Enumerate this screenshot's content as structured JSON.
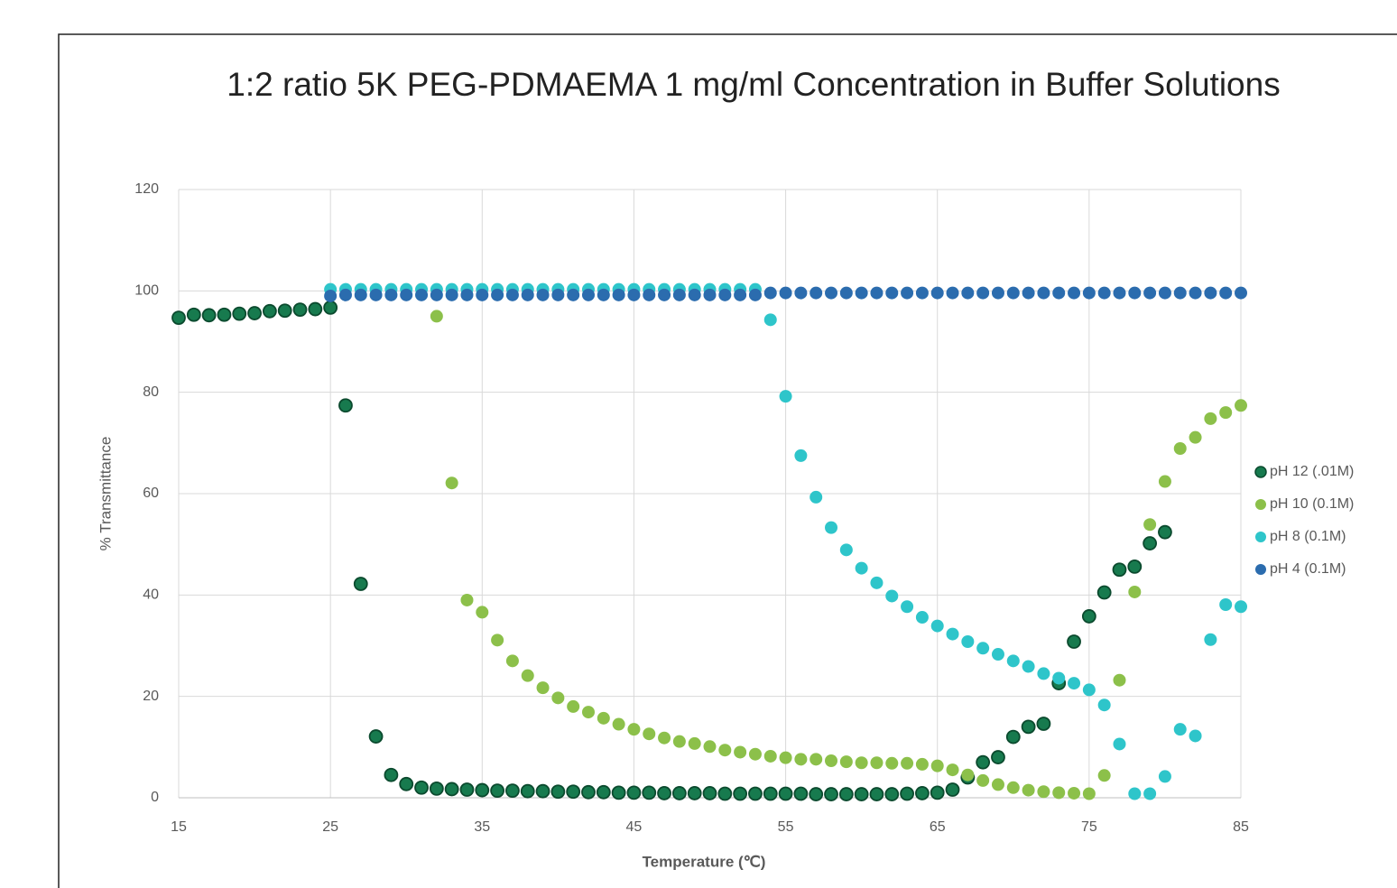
{
  "chart_data": {
    "type": "scatter",
    "title": "1:2 ratio 5K PEG-PDMAEMA 1 mg/ml Concentration in Buffer Solutions",
    "xlabel": "Temperature (℃)",
    "ylabel": "% Transmittance",
    "xlim": [
      15,
      85
    ],
    "xticks": [
      15,
      25,
      35,
      45,
      55,
      65,
      75,
      85
    ],
    "ylim": [
      0,
      120
    ],
    "yticks": [
      0,
      20,
      40,
      60,
      80,
      100,
      120
    ],
    "grid": true,
    "legend": "right",
    "series": [
      {
        "name": "pH 12 (.01M)",
        "color": "#177a4e",
        "edgecolor": "#0b4a2e",
        "x": [
          15,
          16,
          17,
          18,
          19,
          20,
          21,
          22,
          23,
          24,
          25,
          26,
          27,
          28,
          29,
          30,
          31,
          32,
          33,
          34,
          35,
          36,
          37,
          38,
          39,
          40,
          41,
          42,
          43,
          44,
          45,
          46,
          47,
          48,
          49,
          50,
          51,
          52,
          53,
          54,
          55,
          56,
          57,
          58,
          59,
          60,
          61,
          62,
          63,
          64,
          65,
          66,
          67,
          68,
          69,
          70,
          71,
          72,
          73,
          74,
          75,
          76,
          77,
          78,
          79,
          80
        ],
        "values": [
          94.7,
          95.3,
          95.2,
          95.3,
          95.5,
          95.6,
          96.0,
          96.1,
          96.3,
          96.4,
          96.7,
          77.4,
          42.2,
          12.1,
          4.5,
          2.7,
          2.0,
          1.8,
          1.7,
          1.6,
          1.5,
          1.4,
          1.4,
          1.3,
          1.3,
          1.2,
          1.2,
          1.1,
          1.1,
          1.0,
          1.0,
          1.0,
          0.9,
          0.9,
          0.9,
          0.9,
          0.8,
          0.8,
          0.8,
          0.8,
          0.8,
          0.8,
          0.7,
          0.7,
          0.7,
          0.7,
          0.7,
          0.7,
          0.8,
          0.9,
          1.0,
          1.6,
          4.0,
          7.0,
          8.0,
          12.0,
          14.0,
          14.6,
          22.6,
          30.8,
          35.8,
          40.5,
          45.0,
          45.6,
          50.2,
          52.4
        ]
      },
      {
        "name": "pH 10 (0.1M)",
        "color": "#8cc04a",
        "x": [
          32,
          33,
          34,
          35,
          36,
          37,
          38,
          39,
          40,
          41,
          42,
          43,
          44,
          45,
          46,
          47,
          48,
          49,
          50,
          51,
          52,
          53,
          54,
          55,
          56,
          57,
          58,
          59,
          60,
          61,
          62,
          63,
          64,
          65,
          66,
          67,
          68,
          69,
          70,
          71,
          72,
          73,
          74,
          75,
          76,
          77,
          78,
          79,
          80,
          81,
          82,
          83,
          84,
          85
        ],
        "values": [
          95.0,
          62.1,
          39.0,
          36.6,
          31.1,
          27.0,
          24.1,
          21.7,
          19.7,
          18.0,
          16.9,
          15.7,
          14.5,
          13.5,
          12.6,
          11.8,
          11.1,
          10.7,
          10.1,
          9.4,
          9.0,
          8.6,
          8.2,
          7.9,
          7.6,
          7.6,
          7.3,
          7.1,
          6.9,
          6.9,
          6.8,
          6.8,
          6.6,
          6.3,
          5.5,
          4.5,
          3.4,
          2.6,
          2.0,
          1.5,
          1.2,
          1.0,
          0.9,
          0.8,
          4.4,
          23.2,
          40.6,
          53.9,
          62.4,
          68.9,
          71.1,
          74.8,
          76.0,
          77.4
        ]
      },
      {
        "name": "pH 8 (0.1M)",
        "color": "#2ec5ca",
        "x": [
          25,
          26,
          27,
          28,
          29,
          30,
          31,
          32,
          33,
          34,
          35,
          36,
          37,
          38,
          39,
          40,
          41,
          42,
          43,
          44,
          45,
          46,
          47,
          48,
          49,
          50,
          51,
          52,
          53,
          54,
          55,
          56,
          57,
          58,
          59,
          60,
          61,
          62,
          63,
          64,
          65,
          66,
          67,
          68,
          69,
          70,
          71,
          72,
          73,
          74,
          75,
          76,
          77,
          78,
          79,
          80,
          81,
          82,
          83,
          84,
          85
        ],
        "values": [
          100.3,
          100.3,
          100.3,
          100.3,
          100.3,
          100.3,
          100.3,
          100.3,
          100.3,
          100.3,
          100.3,
          100.3,
          100.3,
          100.3,
          100.3,
          100.3,
          100.3,
          100.3,
          100.3,
          100.3,
          100.3,
          100.3,
          100.3,
          100.3,
          100.3,
          100.3,
          100.3,
          100.3,
          100.3,
          94.3,
          79.2,
          67.5,
          59.3,
          53.3,
          48.9,
          45.3,
          42.4,
          39.8,
          37.7,
          35.6,
          33.9,
          32.3,
          30.8,
          29.5,
          28.3,
          27.0,
          25.9,
          24.5,
          23.6,
          22.6,
          21.3,
          18.3,
          10.6,
          0.8,
          0.8,
          4.2,
          13.5,
          12.2,
          31.2,
          38.1,
          37.7
        ]
      },
      {
        "name": "pH 4 (0.1M)",
        "color": "#2b6cae",
        "x": [
          25,
          26,
          27,
          28,
          29,
          30,
          31,
          32,
          33,
          34,
          35,
          36,
          37,
          38,
          39,
          40,
          41,
          42,
          43,
          44,
          45,
          46,
          47,
          48,
          49,
          50,
          51,
          52,
          53,
          54,
          55,
          56,
          57,
          58,
          59,
          60,
          61,
          62,
          63,
          64,
          65,
          66,
          67,
          68,
          69,
          70,
          71,
          72,
          73,
          74,
          75,
          76,
          77,
          78,
          79,
          80,
          81,
          82,
          83,
          84,
          85
        ],
        "values": [
          99.0,
          99.2,
          99.2,
          99.2,
          99.2,
          99.2,
          99.2,
          99.2,
          99.2,
          99.2,
          99.2,
          99.2,
          99.2,
          99.2,
          99.2,
          99.2,
          99.2,
          99.2,
          99.2,
          99.2,
          99.2,
          99.2,
          99.2,
          99.2,
          99.2,
          99.2,
          99.2,
          99.2,
          99.2,
          99.6,
          99.6,
          99.6,
          99.6,
          99.6,
          99.6,
          99.6,
          99.6,
          99.6,
          99.6,
          99.6,
          99.6,
          99.6,
          99.6,
          99.6,
          99.6,
          99.6,
          99.6,
          99.6,
          99.6,
          99.6,
          99.6,
          99.6,
          99.6,
          99.6,
          99.6,
          99.6,
          99.6,
          99.6,
          99.6,
          99.6,
          99.6
        ]
      }
    ]
  }
}
